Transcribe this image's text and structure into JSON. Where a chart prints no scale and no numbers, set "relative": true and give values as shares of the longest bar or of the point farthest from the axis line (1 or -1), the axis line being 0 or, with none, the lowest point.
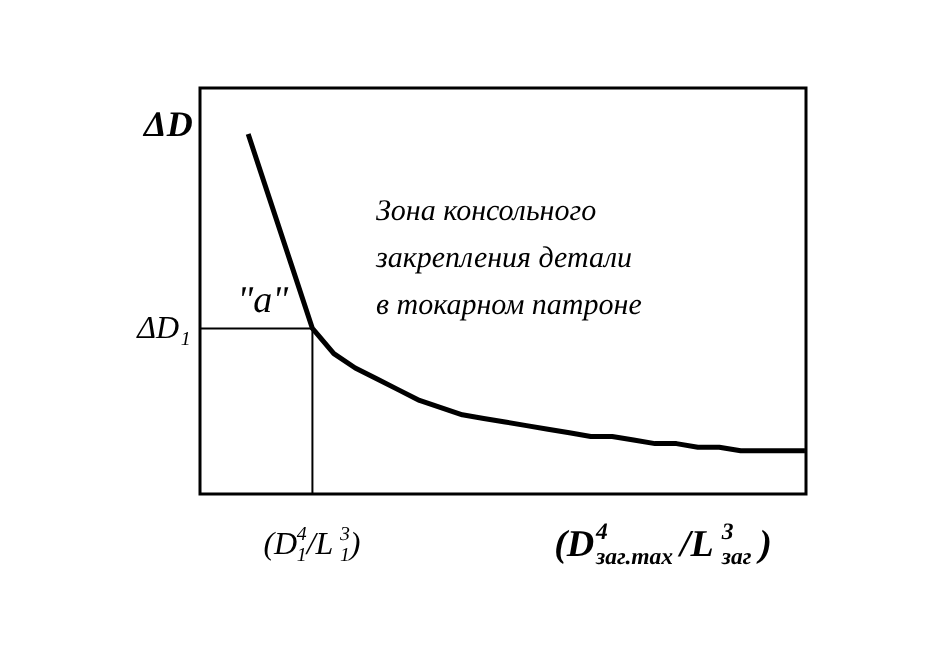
{
  "chart_data": {
    "type": "line",
    "relative": true,
    "xlabel": "(D$^{4}$$_{заг.max}$/L$^{3}$$_{заг}$)",
    "ylabel": "ΔD",
    "categories": [
      null,
      null,
      null,
      null,
      null,
      null,
      null,
      null,
      null,
      null,
      null,
      null,
      null,
      null,
      null,
      null,
      null,
      null,
      null,
      null,
      null,
      null,
      null,
      null,
      null,
      null,
      null
    ],
    "series": [
      {
        "color": "#000000",
        "line_style": "solid",
        "values": [
          1.0,
          0.82,
          0.64,
          0.46,
          0.39,
          0.35,
          0.32,
          0.29,
          0.26,
          0.24,
          0.22,
          0.21,
          0.2,
          0.19,
          0.18,
          0.17,
          0.16,
          0.16,
          0.15,
          0.14,
          0.14,
          0.13,
          0.13,
          0.12,
          0.12,
          0.12,
          0.12
        ]
      }
    ],
    "ref_lines": [
      {
        "axis": "y",
        "value": 0.46,
        "label": "ΔD$_{1}$"
      }
    ],
    "annotations": [
      {
        "text": "\"a\"",
        "y": 0.46
      },
      "(D$_{1}$$^{4}$/L$_{1}$$^{3}$)",
      "Зона консольного\nзакрепления детали\nв токарном патроне"
    ]
  }
}
